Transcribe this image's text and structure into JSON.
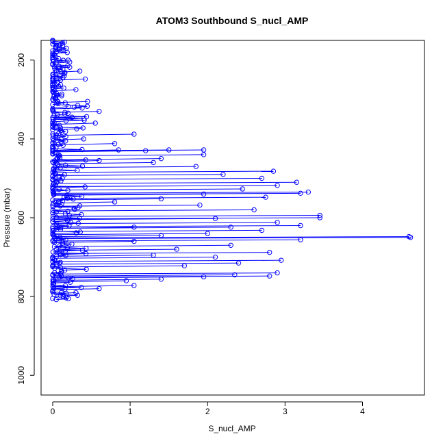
{
  "chart_data": {
    "type": "scatter",
    "title": "ATOM3 Southbound S_nucl_AMP",
    "xlabel": "S_nucl_AMP",
    "ylabel": "Pressure (mbar)",
    "xlim": [
      -0.15,
      4.8
    ],
    "ylim": [
      1050,
      150
    ],
    "y_reversed": true,
    "x_ticks": [
      0,
      1,
      2,
      3,
      4
    ],
    "x_tick_labels": [
      "0",
      "1",
      "2",
      "3",
      "4"
    ],
    "y_ticks": [
      200,
      400,
      600,
      800,
      1000
    ],
    "y_tick_labels": [
      "200",
      "400",
      "600",
      "800",
      "1000"
    ],
    "grid": false,
    "legend": "none",
    "series_color": "#0000ff",
    "marker": "open-circle",
    "connected_by_lines": true,
    "series": [
      {
        "points": [
          {
            "x": 0.0,
            "y": 150
          },
          {
            "x": 0.05,
            "y": 162
          },
          {
            "x": 0.12,
            "y": 175
          },
          {
            "x": 0.02,
            "y": 188
          },
          {
            "x": 0.2,
            "y": 200
          },
          {
            "x": 0.08,
            "y": 215
          },
          {
            "x": 0.35,
            "y": 228
          },
          {
            "x": 0.15,
            "y": 240
          },
          {
            "x": 0.42,
            "y": 248
          },
          {
            "x": 0.1,
            "y": 262
          },
          {
            "x": 0.3,
            "y": 275
          },
          {
            "x": 0.05,
            "y": 290
          },
          {
            "x": 0.45,
            "y": 305
          },
          {
            "x": 0.2,
            "y": 318
          },
          {
            "x": 0.6,
            "y": 330
          },
          {
            "x": 0.25,
            "y": 345
          },
          {
            "x": 0.55,
            "y": 360
          },
          {
            "x": 0.1,
            "y": 372
          },
          {
            "x": 1.05,
            "y": 388
          },
          {
            "x": 0.4,
            "y": 400
          },
          {
            "x": 0.8,
            "y": 412
          },
          {
            "x": 1.95,
            "y": 428
          },
          {
            "x": 1.5,
            "y": 428
          },
          {
            "x": 1.2,
            "y": 430
          },
          {
            "x": 0.85,
            "y": 428
          },
          {
            "x": 1.95,
            "y": 440
          },
          {
            "x": 1.4,
            "y": 450
          },
          {
            "x": 0.6,
            "y": 455
          },
          {
            "x": 1.85,
            "y": 470
          },
          {
            "x": 1.3,
            "y": 460
          },
          {
            "x": 2.85,
            "y": 482
          },
          {
            "x": 2.2,
            "y": 490
          },
          {
            "x": 2.7,
            "y": 500
          },
          {
            "x": 3.15,
            "y": 510
          },
          {
            "x": 3.3,
            "y": 535
          },
          {
            "x": 2.9,
            "y": 518
          },
          {
            "x": 2.45,
            "y": 527
          },
          {
            "x": 1.95,
            "y": 540
          },
          {
            "x": 1.4,
            "y": 552
          },
          {
            "x": 2.75,
            "y": 548
          },
          {
            "x": 3.2,
            "y": 538
          },
          {
            "x": 0.8,
            "y": 560
          },
          {
            "x": 0.35,
            "y": 570
          },
          {
            "x": 1.9,
            "y": 568
          },
          {
            "x": 2.6,
            "y": 580
          },
          {
            "x": 3.45,
            "y": 594
          },
          {
            "x": 3.45,
            "y": 600
          },
          {
            "x": 2.1,
            "y": 602
          },
          {
            "x": 2.9,
            "y": 612
          },
          {
            "x": 3.2,
            "y": 620
          },
          {
            "x": 2.3,
            "y": 624
          },
          {
            "x": 1.05,
            "y": 624
          },
          {
            "x": 2.7,
            "y": 632
          },
          {
            "x": 2.0,
            "y": 640
          },
          {
            "x": 1.4,
            "y": 645
          },
          {
            "x": 4.62,
            "y": 650
          },
          {
            "x": 4.6,
            "y": 648
          },
          {
            "x": 3.2,
            "y": 656
          },
          {
            "x": 1.05,
            "y": 660
          },
          {
            "x": 2.3,
            "y": 670
          },
          {
            "x": 1.6,
            "y": 680
          },
          {
            "x": 2.8,
            "y": 688
          },
          {
            "x": 1.3,
            "y": 695
          },
          {
            "x": 2.1,
            "y": 700
          },
          {
            "x": 2.95,
            "y": 708
          },
          {
            "x": 2.4,
            "y": 715
          },
          {
            "x": 1.7,
            "y": 722
          },
          {
            "x": 2.9,
            "y": 740
          },
          {
            "x": 2.35,
            "y": 745
          },
          {
            "x": 1.95,
            "y": 750
          },
          {
            "x": 2.8,
            "y": 748
          },
          {
            "x": 1.4,
            "y": 756
          },
          {
            "x": 0.95,
            "y": 760
          },
          {
            "x": 1.05,
            "y": 772
          },
          {
            "x": 0.6,
            "y": 780
          },
          {
            "x": 0.3,
            "y": 790
          },
          {
            "x": 0.1,
            "y": 798
          },
          {
            "x": 0.0,
            "y": 805
          }
        ]
      }
    ]
  }
}
